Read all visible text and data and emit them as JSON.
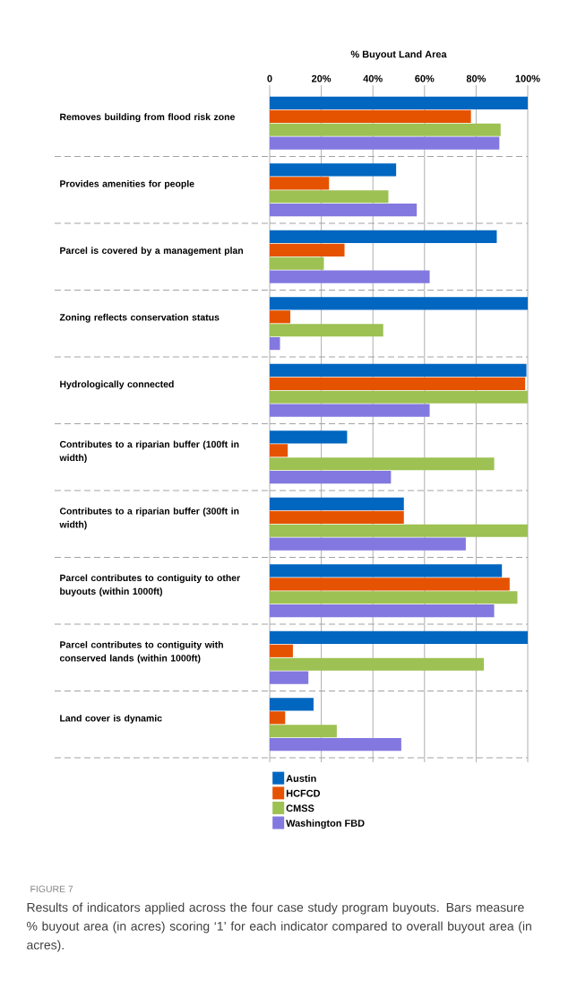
{
  "chart_data": {
    "type": "bar",
    "orientation": "horizontal",
    "xlabel": "% Buyout Land Area",
    "categories": [
      "Removes building from flood risk zone",
      "Provides amenities for people",
      "Parcel is covered by a management plan",
      "Zoning reflects conservation status",
      "Hydrologically connected",
      "Contributes to a riparian buffer (100ft in width)",
      "Contributes to a riparian buffer (300ft in width)",
      "Parcel contributes to contiguity to other buyouts (within 1000ft)",
      "Parcel contributes to contiguity with conserved lands (within 1000ft)",
      "Land cover is dynamic"
    ],
    "series": [
      {
        "name": "Austin",
        "color": "#0066c0",
        "values": [
          100,
          49,
          88,
          100,
          99.5,
          30,
          52,
          90,
          100,
          17
        ]
      },
      {
        "name": "HCFCD",
        "color": "#e55300",
        "values": [
          78,
          23,
          29,
          8,
          99,
          7,
          52,
          93,
          9,
          6
        ]
      },
      {
        "name": "CMSS",
        "color": "#9dc152",
        "values": [
          89.5,
          46,
          21,
          44,
          100,
          87,
          100,
          96,
          83,
          26
        ]
      },
      {
        "name": "Washington FBD",
        "color": "#8378e0",
        "values": [
          89,
          57,
          62,
          4,
          62,
          47,
          76,
          87,
          15,
          51
        ]
      }
    ],
    "xlim": [
      0,
      100
    ],
    "xticks": [
      0,
      {
        "value": 20,
        "label": "20%"
      },
      {
        "value": 40,
        "label": "40%"
      },
      {
        "value": 60,
        "label": "60%"
      },
      {
        "value": 80,
        "label": "80%"
      },
      {
        "value": 100,
        "label": "100%"
      }
    ],
    "grid": true,
    "legend": "bottom",
    "annotations": [
      "FIGURE 7",
      "Results of indicators applied across the four case study program buyouts. Bars measure % buyout area (in acres) scoring ‘1’ for each indicator compared to overall buyout area (in acres)."
    ]
  }
}
